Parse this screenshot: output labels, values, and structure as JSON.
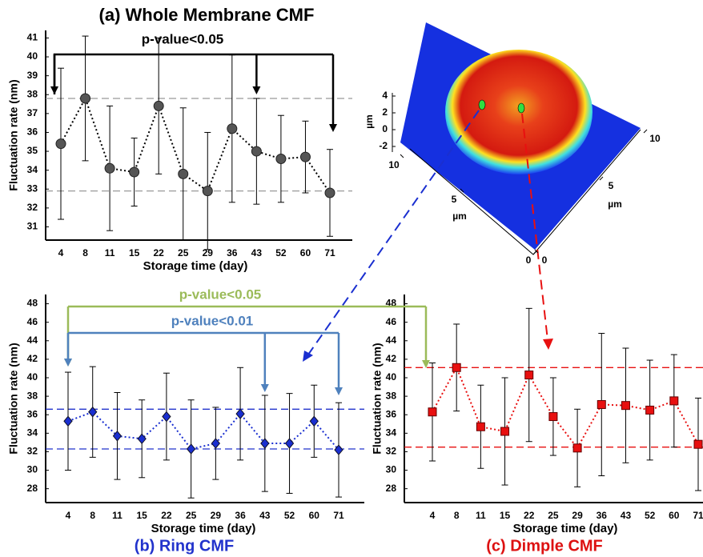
{
  "chart_data": [
    {
      "type": "line",
      "title": "(a) Whole Membrane CMF",
      "title_color": "#000000",
      "x_label": "Storage time (day)",
      "y_label": "Fluctuation rate  (nm)",
      "categories": [
        "4",
        "8",
        "11",
        "15",
        "22",
        "25",
        "29",
        "36",
        "43",
        "52",
        "60",
        "71"
      ],
      "series": [
        {
          "color": "#555555",
          "marker": "circle",
          "values": [
            35.4,
            37.8,
            34.1,
            33.9,
            37.4,
            33.8,
            32.9,
            36.2,
            35.0,
            34.6,
            34.7,
            32.8
          ],
          "errors": [
            4.0,
            3.3,
            3.3,
            1.8,
            3.6,
            3.5,
            3.1,
            3.9,
            2.8,
            2.3,
            1.9,
            2.3
          ]
        }
      ],
      "ylim": [
        30.3,
        41.4
      ],
      "yticks": [
        31,
        32,
        33,
        34,
        35,
        36,
        37,
        38,
        39,
        40,
        41
      ],
      "reference_lines": [
        37.8,
        32.9
      ],
      "reference_color": "#999999",
      "annotations": [
        {
          "text": "p-value<0.05",
          "color": "#000000"
        }
      ]
    },
    {
      "type": "line",
      "title": "(b) Ring CMF",
      "title_color": "#2233cc",
      "x_label": "Storage time (day)",
      "y_label": "Fluctuation rate  (nm)",
      "categories": [
        "4",
        "8",
        "11",
        "15",
        "22",
        "25",
        "29",
        "36",
        "43",
        "52",
        "60",
        "71"
      ],
      "series": [
        {
          "color": "#1a2fd0",
          "marker": "diamond",
          "values": [
            35.3,
            36.3,
            33.7,
            33.4,
            35.8,
            32.3,
            32.9,
            36.1,
            32.9,
            32.9,
            35.3,
            32.2
          ],
          "errors": [
            5.3,
            4.9,
            4.7,
            4.2,
            4.7,
            5.3,
            3.9,
            5.0,
            5.2,
            5.4,
            3.9,
            5.1
          ]
        }
      ],
      "ylim": [
        26.5,
        49.0
      ],
      "yticks": [
        28,
        30,
        32,
        34,
        36,
        38,
        40,
        42,
        44,
        46,
        48
      ],
      "reference_lines": [
        36.6,
        32.3
      ],
      "reference_color": "#2233cc",
      "annotations": [
        {
          "text": "p-value<0.05",
          "color": "#9bbb59"
        },
        {
          "text": "p-value<0.01",
          "color": "#4f81bd"
        }
      ]
    },
    {
      "type": "line",
      "title": "(c) Dimple CMF",
      "title_color": "#dd1111",
      "x_label": "Storage time (day)",
      "y_label": "Fluctuation rate  (nm)",
      "categories": [
        "4",
        "8",
        "11",
        "15",
        "22",
        "25",
        "29",
        "36",
        "43",
        "52",
        "60",
        "71"
      ],
      "series": [
        {
          "color": "#e81010",
          "marker": "square",
          "values": [
            36.3,
            41.1,
            34.7,
            34.2,
            40.3,
            35.8,
            32.4,
            37.1,
            37.0,
            36.5,
            37.5,
            32.8
          ],
          "errors": [
            5.3,
            4.7,
            4.5,
            5.8,
            7.2,
            4.2,
            4.2,
            7.7,
            6.2,
            5.4,
            5.0,
            5.0
          ]
        }
      ],
      "ylim": [
        26.5,
        49.0
      ],
      "yticks": [
        28,
        30,
        32,
        34,
        36,
        38,
        40,
        42,
        44,
        46,
        48
      ],
      "reference_lines": [
        41.1,
        32.5
      ],
      "reference_color": "#e81010",
      "annotations": []
    }
  ],
  "surface_plot": {
    "z_label": "µm",
    "zticks": [
      4,
      2,
      0,
      -2
    ],
    "x_label": "µm",
    "xticks": [
      0,
      5,
      10
    ],
    "y_label": "µm",
    "yticks": [
      0,
      5,
      10
    ]
  }
}
